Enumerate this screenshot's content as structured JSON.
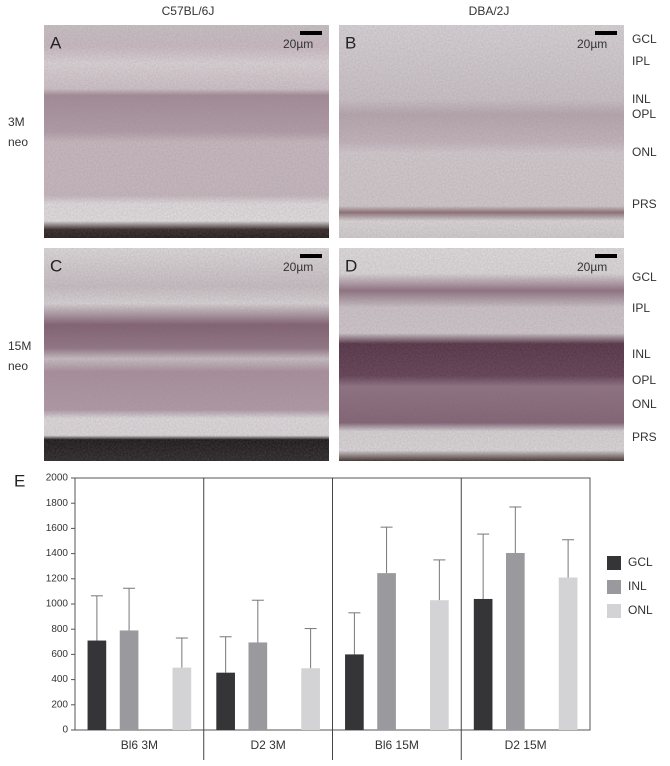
{
  "figure": {
    "columns": [
      "C57BL/6J",
      "DBA/2J"
    ],
    "rows": [
      [
        "3M",
        "neo"
      ],
      [
        "15M",
        "neo"
      ]
    ],
    "panels": [
      "A",
      "B",
      "C",
      "D"
    ],
    "scale_labels": [
      "20µm",
      "20µm",
      "20µm",
      "20µm"
    ],
    "layers": [
      [
        "GCL",
        "IPL",
        "INL",
        "OPL",
        "ONL",
        "PRS"
      ],
      [
        "GCL",
        "IPL",
        "INL",
        "OPL",
        "ONL",
        "PRS"
      ]
    ]
  },
  "chart_data": {
    "type": "bar",
    "label": "E",
    "categories": [
      "Bl6 3M",
      "D2 3M",
      "Bl6 15M",
      "D2 15M"
    ],
    "series": [
      {
        "name": "GCL",
        "color": "#353537",
        "values": [
          710,
          455,
          600,
          1040
        ],
        "errors": [
          355,
          285,
          330,
          515
        ]
      },
      {
        "name": "INL",
        "color": "#9a9a9e",
        "values": [
          790,
          695,
          1245,
          1405
        ],
        "errors": [
          335,
          335,
          365,
          365
        ]
      },
      {
        "name": "ONL",
        "color": "#d3d3d5",
        "values": [
          495,
          490,
          1030,
          1210
        ],
        "errors": [
          235,
          315,
          320,
          300
        ]
      }
    ],
    "ylim": [
      0,
      2000
    ],
    "yticks": [
      0,
      200,
      400,
      600,
      800,
      1000,
      1200,
      1400,
      1600,
      1800,
      2000
    ]
  }
}
